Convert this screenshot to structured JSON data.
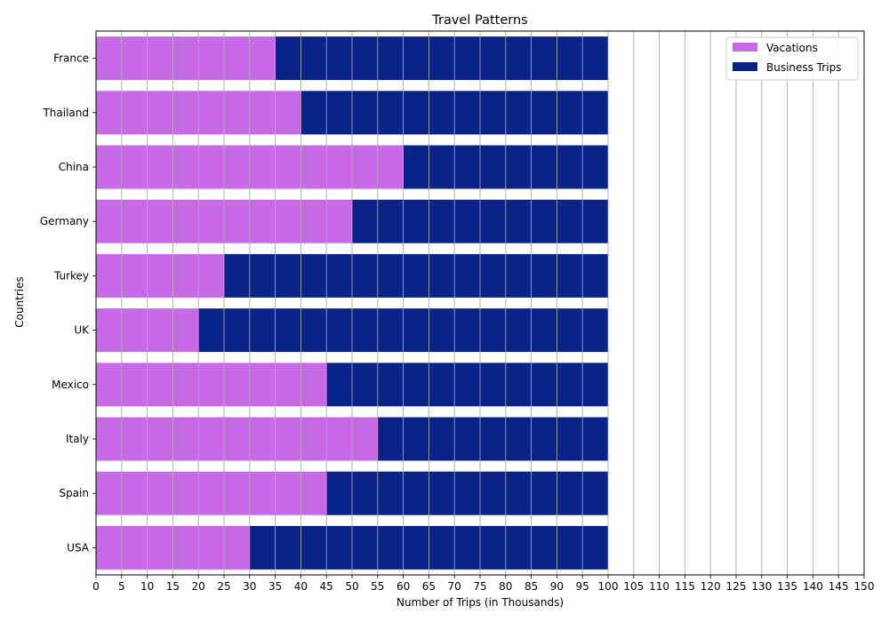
{
  "chart_data": {
    "type": "bar",
    "orientation": "horizontal",
    "stacked": true,
    "title": "Travel Patterns",
    "xlabel": "Number of Trips (in Thousands)",
    "ylabel": "Countries",
    "categories": [
      "USA",
      "Spain",
      "Italy",
      "Mexico",
      "UK",
      "Turkey",
      "Germany",
      "China",
      "Thailand",
      "France"
    ],
    "series": [
      {
        "name": "Vacations",
        "color": "#c86ae8",
        "values": [
          30,
          45,
          55,
          45,
          20,
          25,
          50,
          60,
          40,
          35
        ]
      },
      {
        "name": "Business Trips",
        "color": "#0a2389",
        "values": [
          70,
          55,
          45,
          55,
          80,
          75,
          50,
          40,
          60,
          65
        ]
      }
    ],
    "xlim": [
      0,
      150
    ],
    "xticks": [
      0,
      5,
      10,
      15,
      20,
      25,
      30,
      35,
      40,
      45,
      50,
      55,
      60,
      65,
      70,
      75,
      80,
      85,
      90,
      95,
      100,
      105,
      110,
      115,
      120,
      125,
      130,
      135,
      140,
      145,
      150
    ],
    "grid": "vertical",
    "legend_position": "top-right"
  }
}
